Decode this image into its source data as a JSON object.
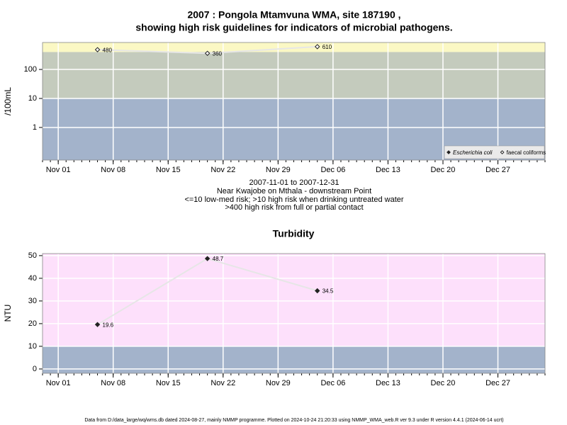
{
  "chart_data": [
    {
      "type": "line",
      "title": "2007 : Pongola Mtamvuna WMA, site 187190 ,",
      "subtitle": "showing high risk guidelines for indicators of microbial pathogens.",
      "notes": [
        "2007-11-01 to 2007-12-31",
        "Near Kwajobe on Mthala - downstream Point",
        "<=10 low-med risk; >10 high risk when drinking untreated water",
        ">400 high risk from full or partial contact"
      ],
      "ylabel": "/100mL",
      "x": [
        "2007-11-06",
        "2007-11-20",
        "2007-12-04"
      ],
      "series": [
        {
          "name": "Escherichia coli",
          "color": "#222222",
          "marker": "filled-diamond",
          "values": [
            null,
            null,
            null
          ]
        },
        {
          "name": "faecal coliforms",
          "color": "#222222",
          "marker": "open-diamond",
          "values": [
            480,
            360,
            610
          ]
        }
      ],
      "log_scale": true,
      "xlim": [
        "2007-10-30",
        "2008-01-02"
      ],
      "xticks": [
        {
          "value": "2007-11-01",
          "label": "Nov 01"
        },
        {
          "value": "2007-11-08",
          "label": "Nov 08"
        },
        {
          "value": "2007-11-15",
          "label": "Nov 15"
        },
        {
          "value": "2007-11-22",
          "label": "Nov 22"
        },
        {
          "value": "2007-11-29",
          "label": "Nov 29"
        },
        {
          "value": "2007-12-06",
          "label": "Dec 06"
        },
        {
          "value": "2007-12-13",
          "label": "Dec 13"
        },
        {
          "value": "2007-12-20",
          "label": "Dec 20"
        },
        {
          "value": "2007-12-27",
          "label": "Dec 27"
        }
      ],
      "ylim": [
        0.075,
        850
      ],
      "yticks": [
        1,
        10,
        100
      ],
      "bands": {
        "breaks": [
          10,
          400
        ],
        "colors": [
          "#a3b3cb",
          "#c4cbbd",
          "#fbf8c4"
        ]
      },
      "grid": true,
      "legend": "bottom-right"
    },
    {
      "type": "line",
      "title": "Turbidity",
      "ylabel": "NTU",
      "x": [
        "2007-11-06",
        "2007-11-20",
        "2007-12-04"
      ],
      "values": [
        19.6,
        48.7,
        34.5
      ],
      "color": "#222222",
      "marker": "filled-diamond",
      "xlim": [
        "2007-10-30",
        "2008-01-02"
      ],
      "xticks": [
        {
          "value": "2007-11-01",
          "label": "Nov 01"
        },
        {
          "value": "2007-11-08",
          "label": "Nov 08"
        },
        {
          "value": "2007-11-15",
          "label": "Nov 15"
        },
        {
          "value": "2007-11-22",
          "label": "Nov 22"
        },
        {
          "value": "2007-11-29",
          "label": "Nov 29"
        },
        {
          "value": "2007-12-06",
          "label": "Dec 06"
        },
        {
          "value": "2007-12-13",
          "label": "Dec 13"
        },
        {
          "value": "2007-12-20",
          "label": "Dec 20"
        },
        {
          "value": "2007-12-27",
          "label": "Dec 27"
        }
      ],
      "ylim": [
        -1.9,
        50.9
      ],
      "yticks": [
        0,
        10,
        20,
        30,
        40,
        50
      ],
      "bands": {
        "breaks": [
          10
        ],
        "colors": [
          "#a3b3cb",
          "#fde0fb"
        ]
      },
      "grid": true
    }
  ],
  "footer": "Data from D:/data_large/wq/wms.db dated 2024-08-27, mainly NMMP programme. Plotted on 2024-10-24 21:20:33 using NMMP_WMA_web.R ver 9.3 under R version 4.4.1 (2024-06-14 ucrt)"
}
